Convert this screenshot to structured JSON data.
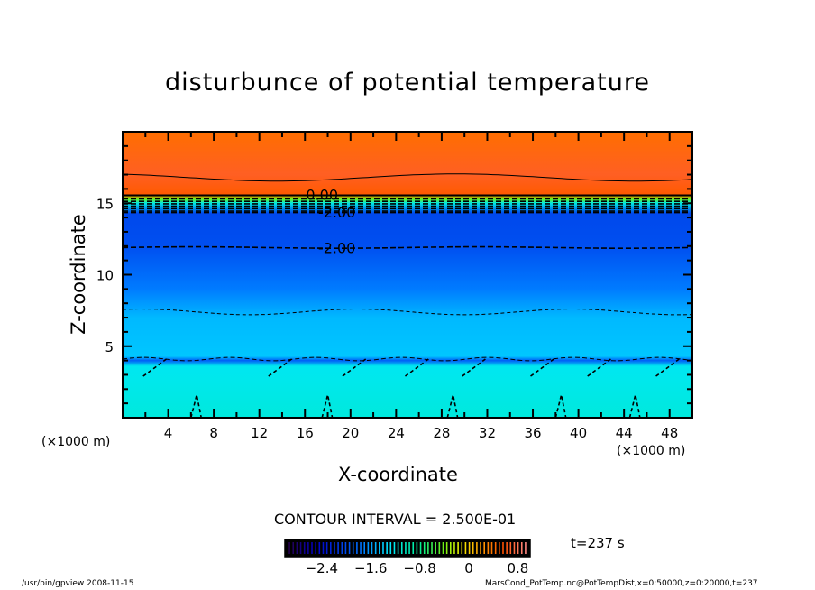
{
  "chart_data": {
    "type": "heatmap",
    "title": "disturbunce of potential temperature",
    "xlabel": "X-coordinate",
    "ylabel": "Z-coordinate",
    "x_unit_label": "(×1000 m)",
    "y_unit_label": "(×1000 m)",
    "xlim": [
      0,
      50
    ],
    "ylim": [
      0,
      20
    ],
    "x_ticks": [
      4,
      8,
      12,
      16,
      20,
      24,
      28,
      32,
      36,
      40,
      44,
      48
    ],
    "y_ticks": [
      5,
      10,
      15
    ],
    "contour_labels": [
      {
        "text": "0.00",
        "x": 17.5,
        "z": 15.6
      },
      {
        "text": "-2.00",
        "x": 18.8,
        "z": 14.4
      },
      {
        "text": "-2.00",
        "x": 18.8,
        "z": 11.9
      }
    ],
    "contour_interval_text": "CONTOUR INTERVAL = 2.500E-01",
    "colorbar": {
      "range": [
        -3.0,
        1.0
      ],
      "tick_labels": [
        "-2.4",
        "-1.6",
        "-0.8",
        "0",
        "0.8"
      ],
      "tick_values": [
        -2.4,
        -1.6,
        -0.8,
        0,
        0.8
      ]
    },
    "field_profile": [
      {
        "z": 20,
        "value": 0.45
      },
      {
        "z": 17,
        "value": 0.7
      },
      {
        "z": 15.6,
        "value": 0.55
      },
      {
        "z": 15.3,
        "value": -0.4
      },
      {
        "z": 15.0,
        "value": -1.2
      },
      {
        "z": 14.3,
        "value": -2.05
      },
      {
        "z": 12,
        "value": -2.0
      },
      {
        "z": 9,
        "value": -1.75
      },
      {
        "z": 7,
        "value": -1.5
      },
      {
        "z": 4.3,
        "value": -1.45
      },
      {
        "z": 4.0,
        "value": -1.9
      },
      {
        "z": 3.6,
        "value": -1.25
      },
      {
        "z": 0,
        "value": -1.15
      }
    ],
    "time_label": "t=237 s"
  },
  "footer": {
    "left": "/usr/bin/gpview   2008-11-15",
    "right": "MarsCond_PotTemp.nc@PotTempDist,x=0:50000,z=0:20000,t=237"
  }
}
